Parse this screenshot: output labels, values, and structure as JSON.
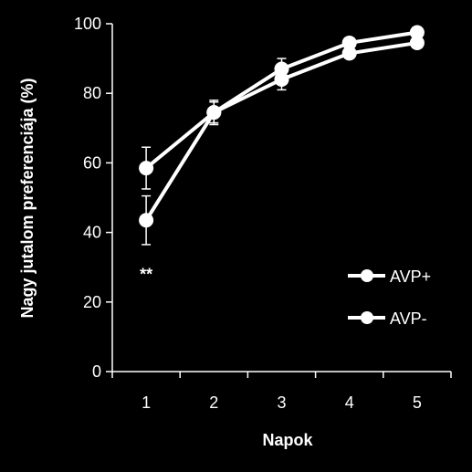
{
  "chart_data": {
    "type": "line",
    "xlabel": "Napok",
    "ylabel": "Nagy jutalom preferenciája (%)",
    "x": [
      1,
      2,
      3,
      4,
      5
    ],
    "xlim": [
      0.5,
      5.5
    ],
    "ylim": [
      0,
      100
    ],
    "yticks": [
      0,
      20,
      40,
      60,
      80,
      100
    ],
    "series": [
      {
        "name": "AVP+",
        "values": [
          58.5,
          74.5,
          84,
          91.5,
          94.5
        ],
        "errors": [
          6,
          3.5,
          3,
          1.5,
          1.5
        ]
      },
      {
        "name": "AVP-",
        "values": [
          43.5,
          74.5,
          87,
          94.5,
          97.5
        ],
        "errors": [
          7,
          3,
          3,
          1.5,
          1.5
        ]
      }
    ],
    "annotations": [
      {
        "x": 1,
        "y": 28,
        "text": "**"
      }
    ],
    "legend_position": "right",
    "grid": false,
    "colors": {
      "background": "#000000",
      "foreground": "#ffffff"
    }
  }
}
